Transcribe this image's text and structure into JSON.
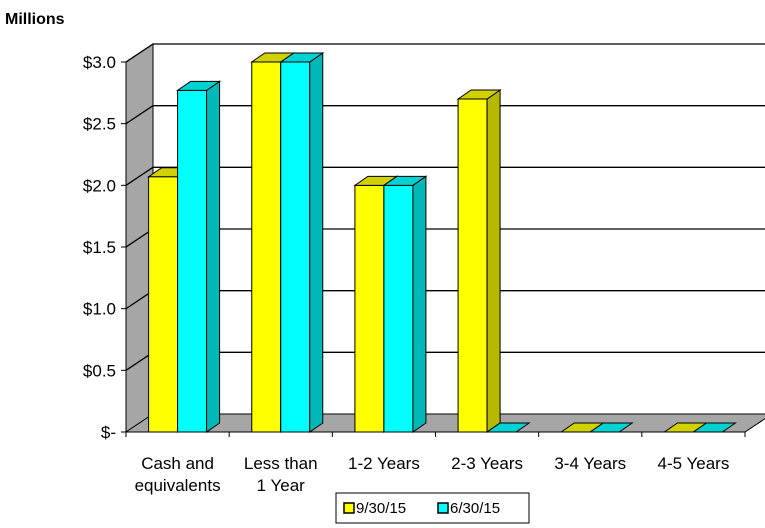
{
  "chart_data": {
    "type": "bar",
    "unit_label": "Millions",
    "categories": [
      [
        "Cash and",
        "equivalents"
      ],
      [
        "Less than",
        "1 Year"
      ],
      [
        "1-2 Years"
      ],
      [
        "2-3 Years"
      ],
      [
        "3-4 Years"
      ],
      [
        "4-5 Years"
      ]
    ],
    "series": [
      {
        "name": "9/30/15",
        "color": "#ffff00",
        "values": [
          2.07,
          3.0,
          2.0,
          2.7,
          0.0,
          0.0
        ]
      },
      {
        "name": "6/30/15",
        "color": "#00ffff",
        "values": [
          2.77,
          3.0,
          2.0,
          0.0,
          0.0,
          0.0
        ]
      }
    ],
    "y_ticks": [
      {
        "value": 0,
        "label": "$-"
      },
      {
        "value": 0.5,
        "label": "$0.5"
      },
      {
        "value": 1.0,
        "label": "$1.0"
      },
      {
        "value": 1.5,
        "label": "$1.5"
      },
      {
        "value": 2.0,
        "label": "$2.0"
      },
      {
        "value": 2.5,
        "label": "$2.5"
      },
      {
        "value": 3.0,
        "label": "$3.0"
      }
    ],
    "ylim": [
      0,
      3.0
    ],
    "grid": true,
    "three_d": true,
    "legend_position": "bottom"
  }
}
